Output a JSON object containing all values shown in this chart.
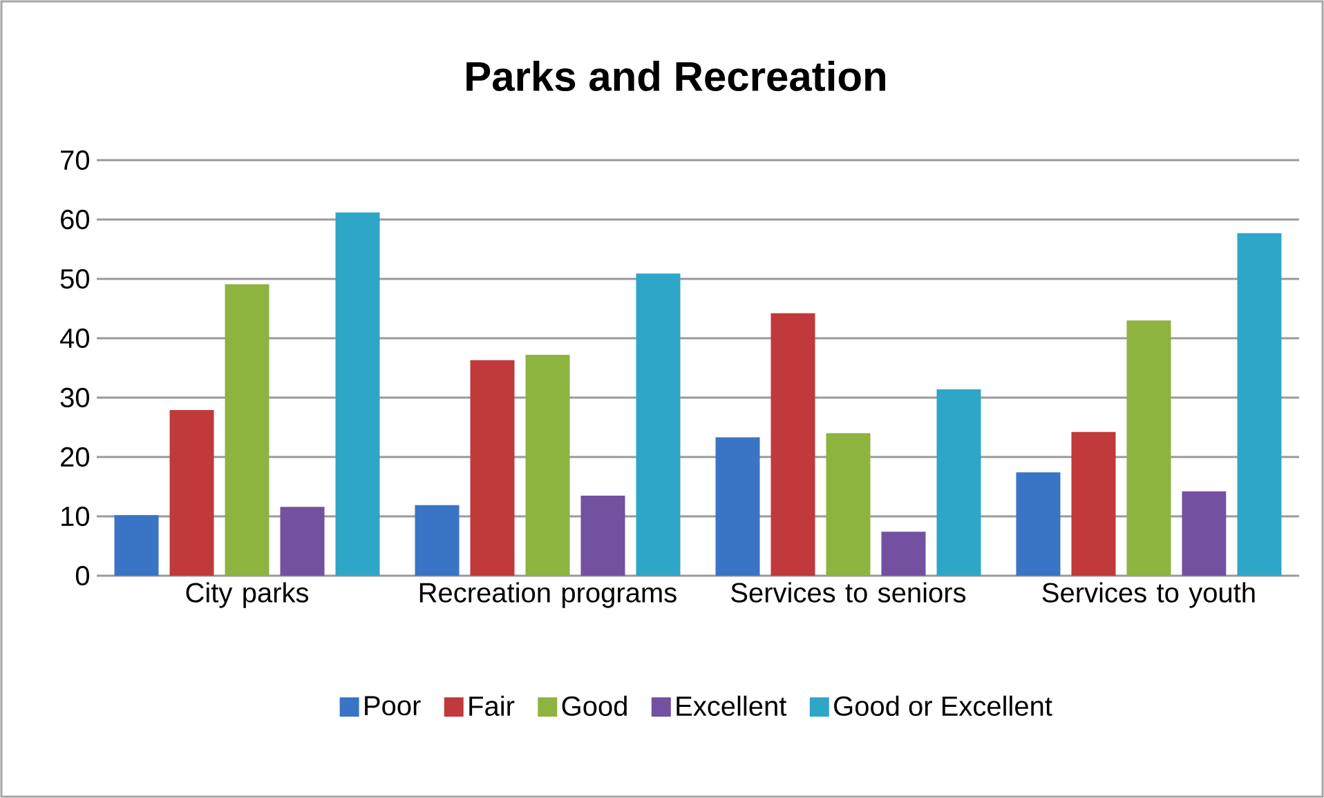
{
  "chart_data": {
    "type": "bar",
    "title": "Parks and Recreation",
    "categories": [
      "City parks",
      "Recreation programs",
      "Services to seniors",
      "Services to youth"
    ],
    "series": [
      {
        "name": "Poor",
        "color": "#3a74c4",
        "values": [
          10.2,
          11.9,
          23.3,
          17.4
        ]
      },
      {
        "name": "Fair",
        "color": "#c0393b",
        "values": [
          27.9,
          36.3,
          44.2,
          24.2
        ]
      },
      {
        "name": "Good",
        "color": "#8db43e",
        "values": [
          49.1,
          37.2,
          24,
          43
        ]
      },
      {
        "name": "Excellent",
        "color": "#7350a0",
        "values": [
          11.6,
          13.5,
          7.4,
          14.2
        ]
      },
      {
        "name": "Good or Excellent",
        "color": "#2ea6c8",
        "values": [
          61.2,
          50.9,
          31.4,
          57.7
        ]
      }
    ],
    "ylim": [
      0,
      70
    ],
    "yticks": [
      0,
      10,
      20,
      30,
      40,
      50,
      60,
      70
    ],
    "grid": "y",
    "legend": "bottom"
  }
}
